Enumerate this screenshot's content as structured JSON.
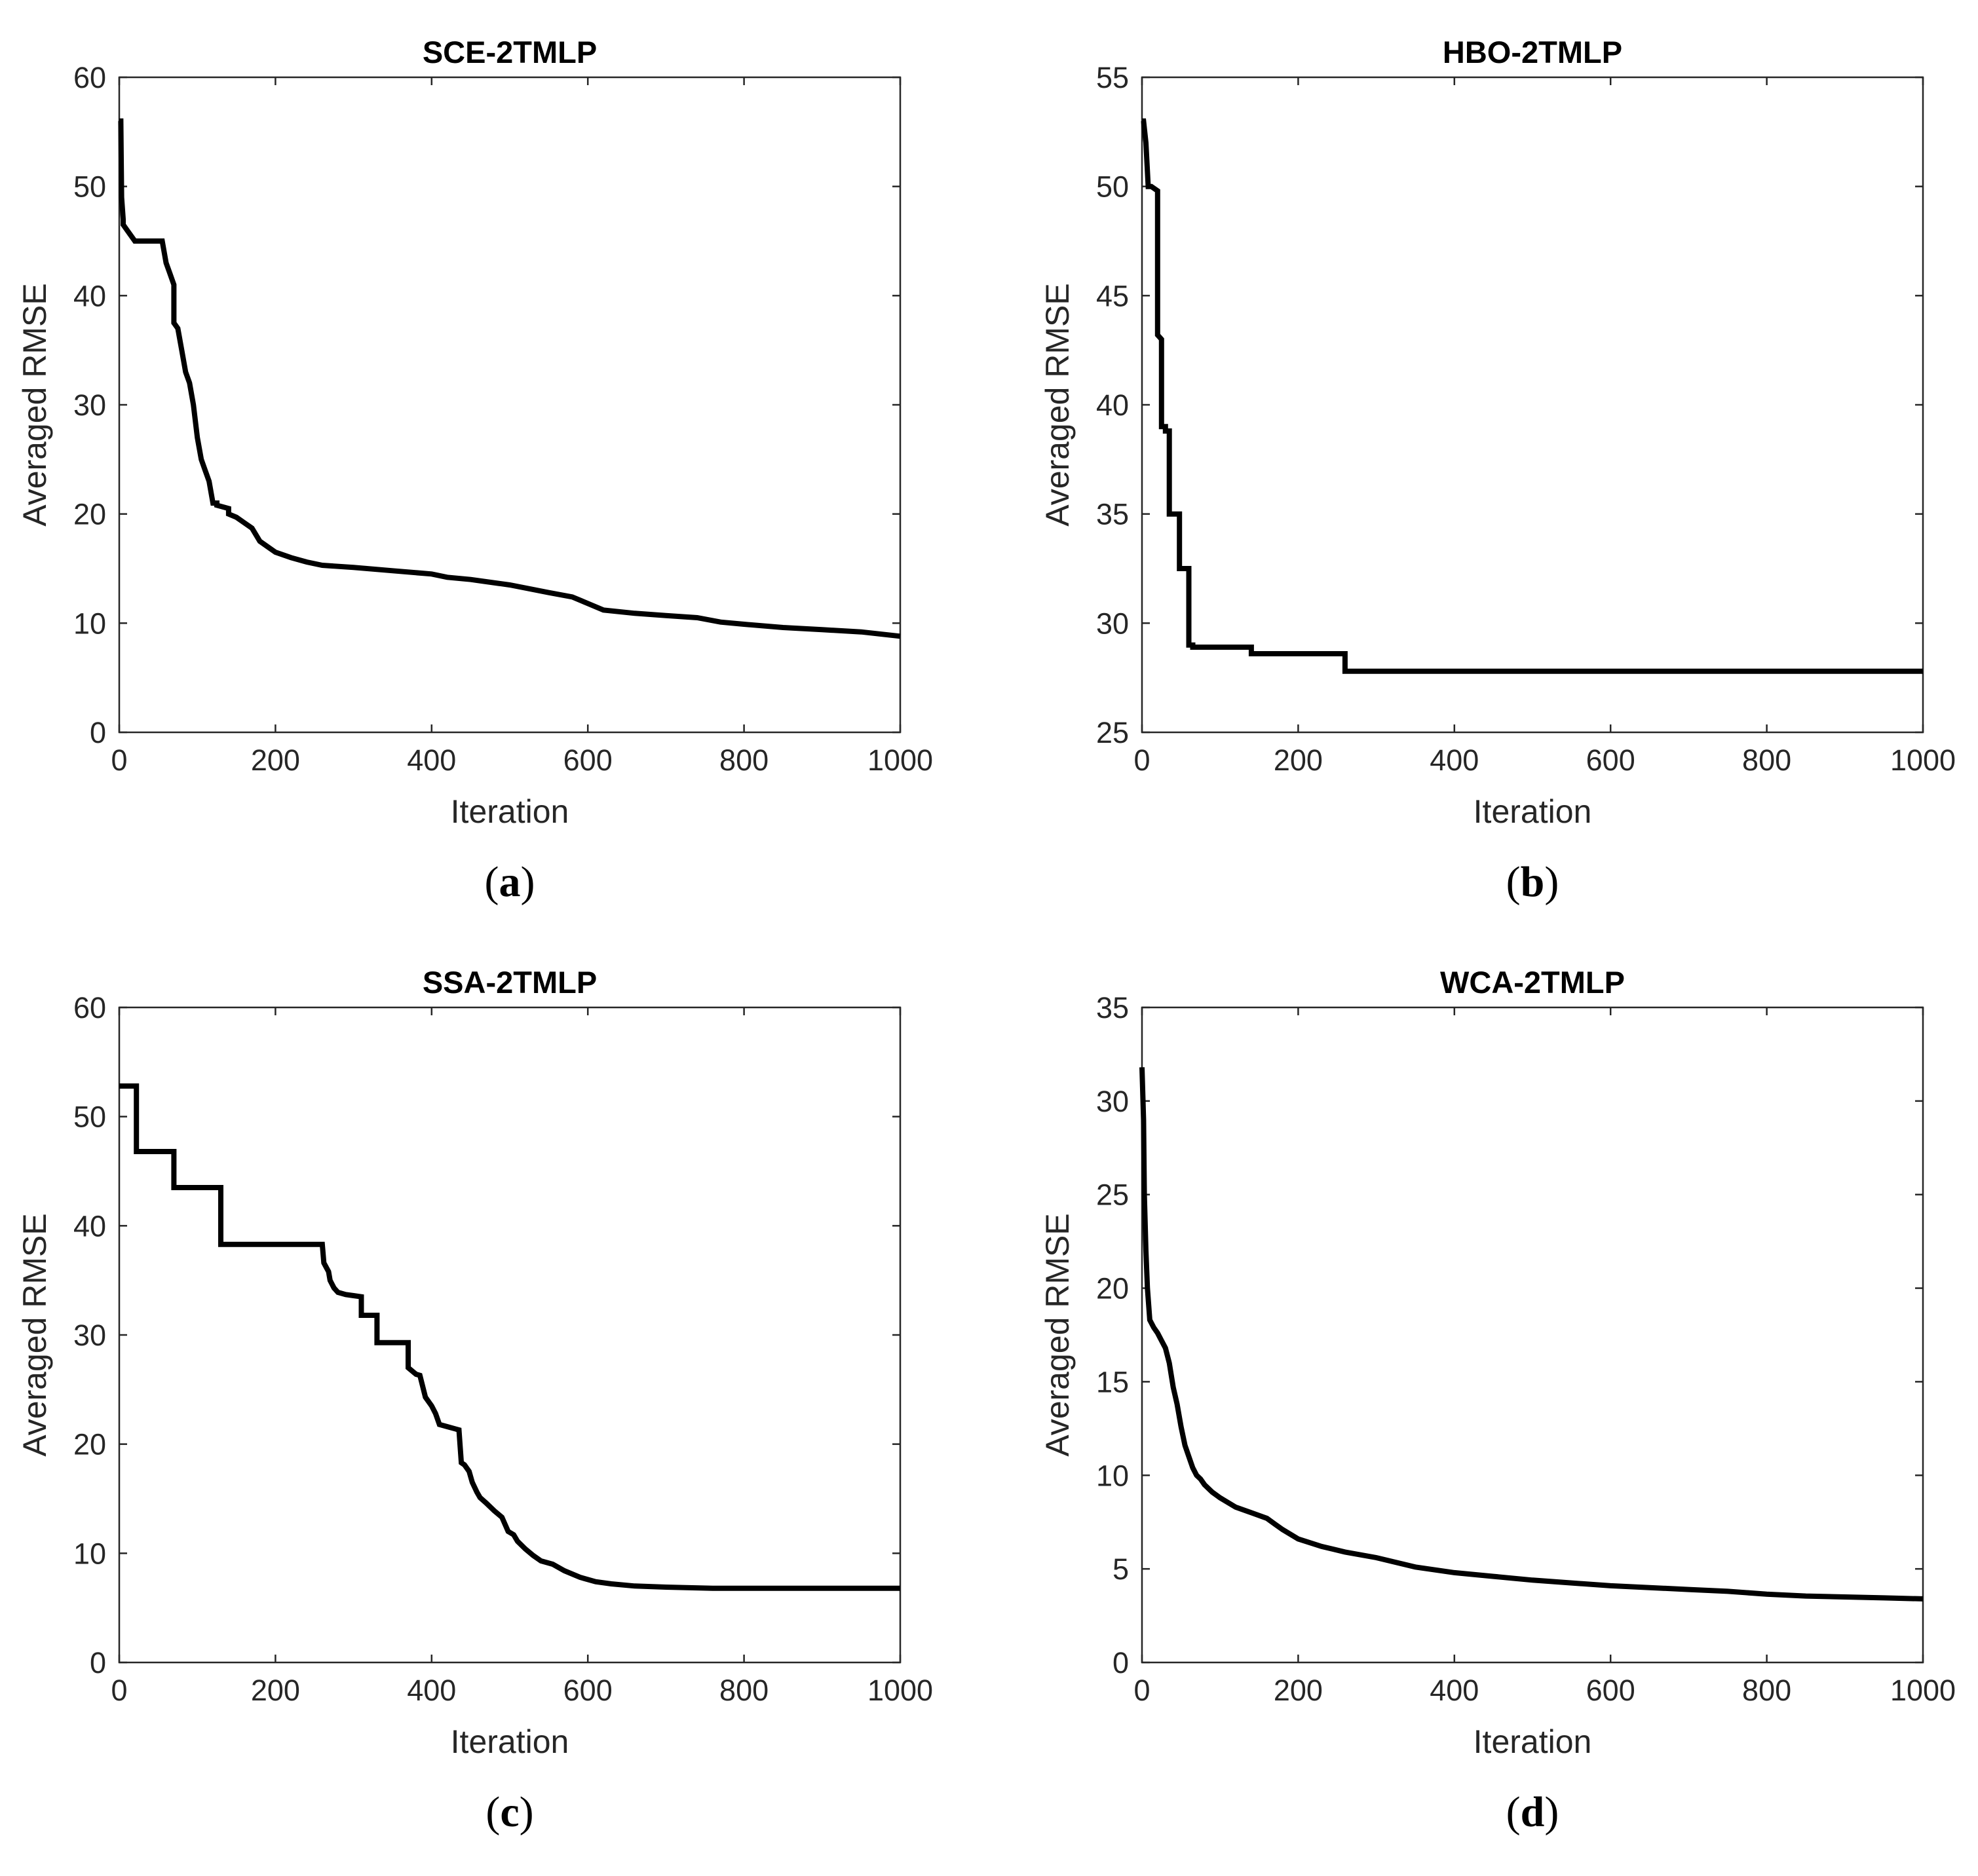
{
  "chart_data": [
    {
      "type": "line",
      "title": "SCE-2TMLP",
      "caption": "a",
      "xlabel": "Iteration",
      "ylabel": "Averaged RMSE",
      "xlim": [
        0,
        1000
      ],
      "ylim": [
        0,
        60
      ],
      "xticks": [
        0,
        200,
        400,
        600,
        800,
        1000
      ],
      "yticks": [
        0,
        10,
        20,
        30,
        40,
        50,
        60
      ],
      "series": [
        {
          "name": "SCE-2TMLP",
          "x": [
            0,
            2,
            3,
            5,
            5,
            10,
            10,
            20,
            20,
            55,
            60,
            65,
            70,
            70,
            75,
            80,
            85,
            90,
            95,
            100,
            105,
            110,
            115,
            120,
            125,
            125,
            140,
            140,
            150,
            160,
            170,
            180,
            190,
            200,
            220,
            240,
            260,
            300,
            350,
            400,
            420,
            450,
            500,
            550,
            580,
            600,
            620,
            660,
            700,
            740,
            770,
            800,
            850,
            900,
            950,
            1000
          ],
          "y": [
            56,
            56,
            49,
            47,
            46.5,
            46,
            46,
            45,
            45,
            45,
            43,
            42,
            41,
            37.5,
            37,
            35,
            33,
            32,
            30,
            27,
            25,
            24,
            23,
            21,
            21,
            20.8,
            20.5,
            20,
            19.7,
            19.2,
            18.7,
            17.5,
            17,
            16.5,
            16,
            15.6,
            15.3,
            15.1,
            14.8,
            14.5,
            14.2,
            14,
            13.5,
            12.8,
            12.4,
            11.8,
            11.2,
            10.9,
            10.7,
            10.5,
            10.1,
            9.9,
            9.6,
            9.4,
            9.2,
            8.8
          ]
        }
      ]
    },
    {
      "type": "line",
      "title": "HBO-2TMLP",
      "caption": "b",
      "xlabel": "Iteration",
      "ylabel": "Averaged RMSE",
      "xlim": [
        0,
        1000
      ],
      "ylim": [
        25,
        55
      ],
      "xticks": [
        0,
        200,
        400,
        600,
        800,
        1000
      ],
      "yticks": [
        25,
        30,
        35,
        40,
        45,
        50,
        55
      ],
      "series": [
        {
          "name": "HBO-2TMLP",
          "x": [
            0,
            2,
            5,
            8,
            8,
            12,
            12,
            20,
            20,
            25,
            25,
            30,
            30,
            35,
            35,
            45,
            45,
            48,
            48,
            60,
            60,
            65,
            65,
            140,
            140,
            260,
            260,
            1000
          ],
          "y": [
            53,
            53,
            52,
            50,
            50,
            50,
            50,
            49.8,
            43.2,
            43,
            39,
            39,
            38.8,
            38.8,
            35,
            35,
            35,
            35,
            32.5,
            32.5,
            29,
            29,
            28.9,
            28.9,
            28.6,
            28.6,
            27.8,
            27.8
          ]
        }
      ]
    },
    {
      "type": "line",
      "title": "SSA-2TMLP",
      "caption": "c",
      "xlabel": "Iteration",
      "ylabel": "Averaged RMSE",
      "xlim": [
        0,
        1000
      ],
      "ylim": [
        0,
        60
      ],
      "xticks": [
        0,
        200,
        400,
        600,
        800,
        1000
      ],
      "yticks": [
        0,
        10,
        20,
        30,
        40,
        50,
        60
      ],
      "series": [
        {
          "name": "SSA-2TMLP",
          "x": [
            0,
            22,
            22,
            70,
            70,
            130,
            130,
            260,
            262,
            265,
            268,
            270,
            275,
            280,
            290,
            300,
            310,
            310,
            330,
            330,
            370,
            370,
            380,
            385,
            392,
            400,
            405,
            410,
            420,
            430,
            435,
            438,
            442,
            448,
            452,
            458,
            462,
            470,
            480,
            490,
            498,
            505,
            510,
            520,
            530,
            540,
            555,
            570,
            590,
            610,
            630,
            660,
            700,
            760,
            800,
            1000
          ],
          "y": [
            52.8,
            52.8,
            46.8,
            46.8,
            43.5,
            43.5,
            38.3,
            38.3,
            36.6,
            36.2,
            35.8,
            35,
            34.3,
            33.9,
            33.7,
            33.6,
            33.5,
            31.8,
            31.8,
            29.3,
            29.3,
            27,
            26.4,
            26.3,
            24.3,
            23.5,
            22.8,
            21.8,
            21.6,
            21.4,
            21.3,
            18.3,
            18.1,
            17.5,
            16.5,
            15.6,
            15.1,
            14.6,
            13.9,
            13.3,
            12,
            11.7,
            11.1,
            10.4,
            9.8,
            9.3,
            9.0,
            8.4,
            7.8,
            7.4,
            7.2,
            7.0,
            6.9,
            6.8,
            6.8,
            6.8
          ]
        }
      ]
    },
    {
      "type": "line",
      "title": "WCA-2TMLP",
      "caption": "d",
      "xlabel": "Iteration",
      "ylabel": "Averaged RMSE",
      "xlim": [
        0,
        1000
      ],
      "ylim": [
        0,
        35
      ],
      "xticks": [
        0,
        200,
        400,
        600,
        800,
        1000
      ],
      "yticks": [
        0,
        5,
        10,
        15,
        20,
        25,
        30,
        35
      ],
      "series": [
        {
          "name": "WCA-2TMLP",
          "x": [
            0,
            2,
            3,
            5,
            7,
            10,
            15,
            20,
            25,
            30,
            35,
            40,
            45,
            50,
            55,
            60,
            65,
            70,
            75,
            80,
            90,
            100,
            120,
            140,
            160,
            170,
            180,
            200,
            230,
            260,
            300,
            350,
            400,
            450,
            500,
            550,
            600,
            650,
            700,
            750,
            800,
            850,
            900,
            950,
            1000
          ],
          "y": [
            31.8,
            29,
            25,
            22,
            20,
            18.3,
            17.9,
            17.6,
            17.2,
            16.8,
            16,
            14.7,
            13.8,
            12.6,
            11.6,
            11.0,
            10.4,
            10.0,
            9.8,
            9.5,
            9.1,
            8.8,
            8.3,
            8.0,
            7.7,
            7.4,
            7.1,
            6.6,
            6.2,
            5.9,
            5.6,
            5.1,
            4.8,
            4.6,
            4.4,
            4.25,
            4.1,
            4.0,
            3.9,
            3.8,
            3.65,
            3.55,
            3.5,
            3.45,
            3.4
          ]
        }
      ]
    }
  ]
}
